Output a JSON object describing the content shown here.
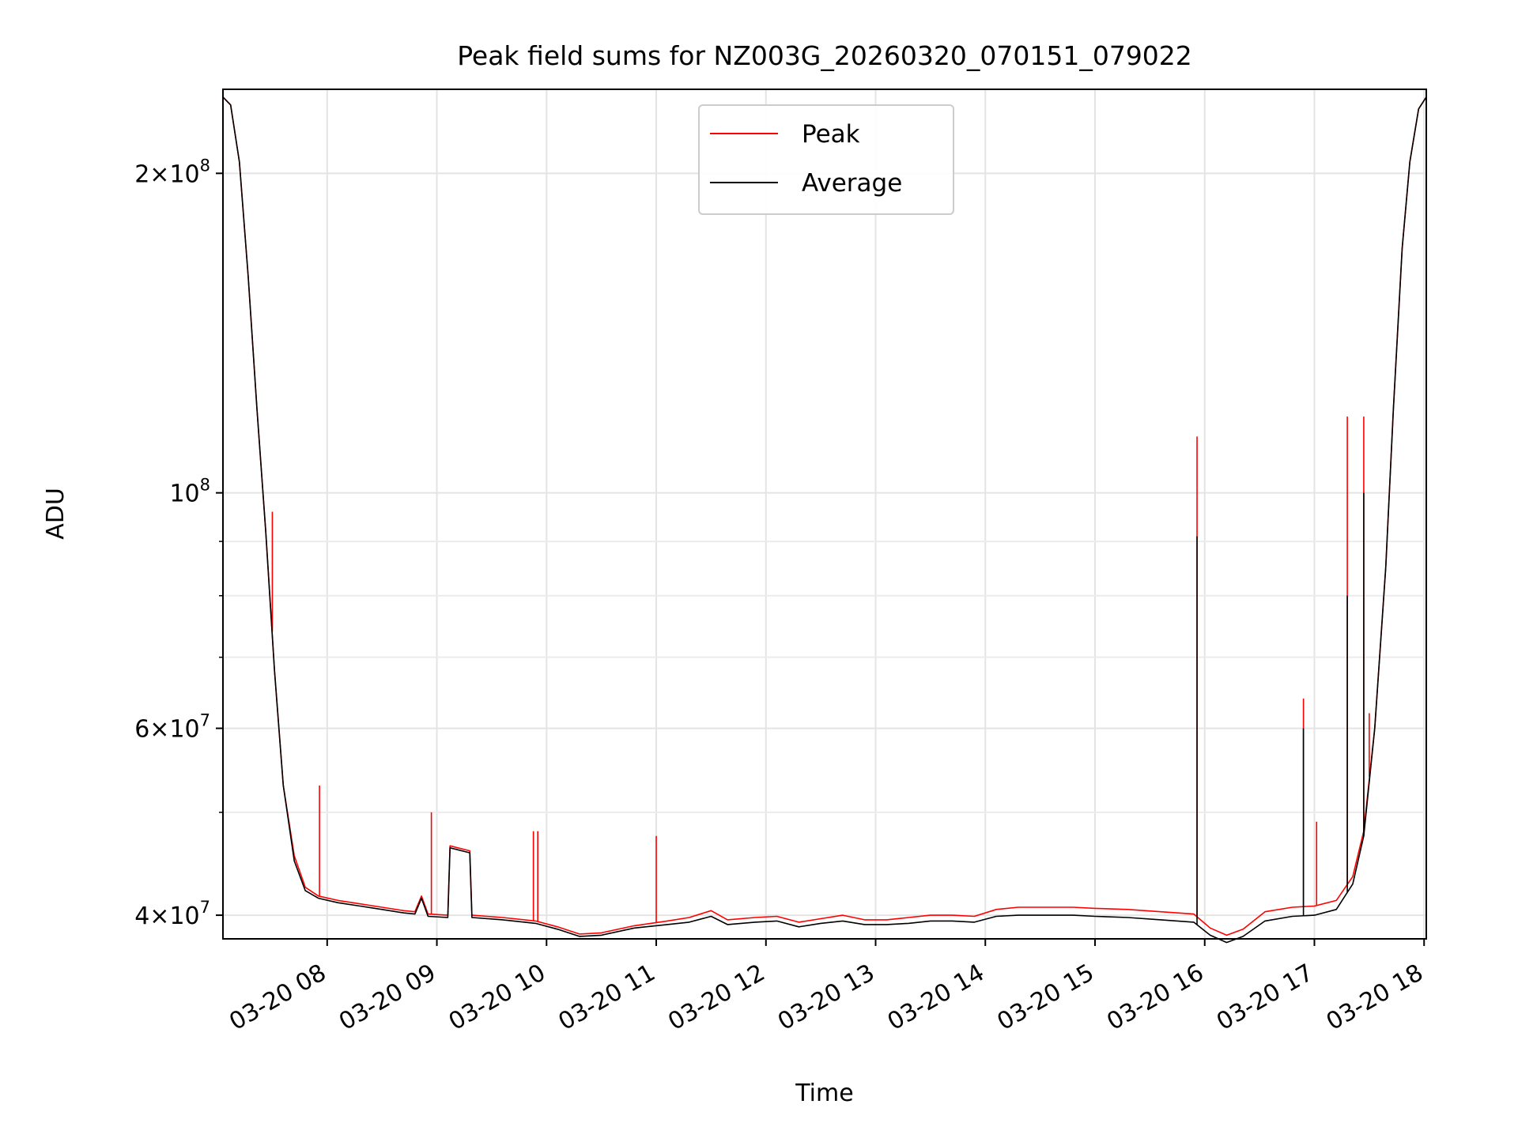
{
  "chart_data": {
    "type": "line",
    "title": "Peak field sums for NZ003G_20260320_070151_079022",
    "xlabel": "Time",
    "ylabel": "ADU",
    "yscale": "log",
    "xlim": [
      7.05,
      18.02
    ],
    "ylim": [
      38000000,
      240000000
    ],
    "grid": true,
    "legend": {
      "location": "upper center",
      "entries": [
        "Peak",
        "Average"
      ]
    },
    "x_ticks": [
      {
        "value": 8,
        "label": "03-20 08"
      },
      {
        "value": 9,
        "label": "03-20 09"
      },
      {
        "value": 10,
        "label": "03-20 10"
      },
      {
        "value": 11,
        "label": "03-20 11"
      },
      {
        "value": 12,
        "label": "03-20 12"
      },
      {
        "value": 13,
        "label": "03-20 13"
      },
      {
        "value": 14,
        "label": "03-20 14"
      },
      {
        "value": 15,
        "label": "03-20 15"
      },
      {
        "value": 16,
        "label": "03-20 16"
      },
      {
        "value": 17,
        "label": "03-20 17"
      },
      {
        "value": 18,
        "label": "03-20 18"
      }
    ],
    "y_major_ticks": [
      {
        "value": 40000000,
        "mantissa": "4",
        "exp": "7"
      },
      {
        "value": 60000000,
        "mantissa": "6",
        "exp": "7"
      },
      {
        "value": 100000000,
        "mantissa": "",
        "exp": "8"
      },
      {
        "value": 200000000,
        "mantissa": "2",
        "exp": "8"
      }
    ],
    "y_minor_ticks": [
      50000000,
      70000000,
      80000000,
      90000000
    ],
    "series": [
      {
        "name": "Peak",
        "color": "#ff0000",
        "points": [
          [
            7.05,
            236000000
          ],
          [
            7.12,
            232000000
          ],
          [
            7.2,
            205000000
          ],
          [
            7.28,
            160000000
          ],
          [
            7.36,
            120000000
          ],
          [
            7.44,
            92000000
          ],
          [
            7.52,
            68000000
          ],
          [
            7.6,
            53000000
          ],
          [
            7.7,
            45500000
          ],
          [
            7.8,
            42500000
          ],
          [
            7.92,
            41700000
          ],
          [
            8.1,
            41300000
          ],
          [
            8.3,
            41000000
          ],
          [
            8.5,
            40700000
          ],
          [
            8.7,
            40400000
          ],
          [
            8.8,
            40300000
          ],
          [
            8.86,
            41700000
          ],
          [
            8.92,
            40100000
          ],
          [
            9.1,
            40000000
          ],
          [
            9.12,
            46500000
          ],
          [
            9.3,
            46000000
          ],
          [
            9.32,
            40000000
          ],
          [
            9.6,
            39800000
          ],
          [
            9.9,
            39500000
          ],
          [
            10.1,
            39000000
          ],
          [
            10.3,
            38400000
          ],
          [
            10.5,
            38500000
          ],
          [
            10.8,
            39100000
          ],
          [
            11.1,
            39500000
          ],
          [
            11.3,
            39800000
          ],
          [
            11.5,
            40400000
          ],
          [
            11.65,
            39600000
          ],
          [
            11.9,
            39800000
          ],
          [
            12.1,
            39900000
          ],
          [
            12.3,
            39400000
          ],
          [
            12.5,
            39700000
          ],
          [
            12.7,
            40000000
          ],
          [
            12.9,
            39600000
          ],
          [
            13.1,
            39600000
          ],
          [
            13.3,
            39800000
          ],
          [
            13.5,
            40000000
          ],
          [
            13.7,
            40000000
          ],
          [
            13.9,
            39900000
          ],
          [
            14.1,
            40500000
          ],
          [
            14.3,
            40700000
          ],
          [
            14.5,
            40700000
          ],
          [
            14.8,
            40700000
          ],
          [
            15.0,
            40600000
          ],
          [
            15.3,
            40500000
          ],
          [
            15.6,
            40300000
          ],
          [
            15.9,
            40100000
          ],
          [
            16.05,
            38900000
          ],
          [
            16.2,
            38300000
          ],
          [
            16.35,
            38800000
          ],
          [
            16.55,
            40300000
          ],
          [
            16.8,
            40700000
          ],
          [
            17.0,
            40800000
          ],
          [
            17.2,
            41300000
          ],
          [
            17.35,
            43500000
          ],
          [
            17.45,
            48000000
          ],
          [
            17.55,
            60000000
          ],
          [
            17.65,
            85000000
          ],
          [
            17.72,
            120000000
          ],
          [
            17.8,
            170000000
          ],
          [
            17.87,
            205000000
          ],
          [
            17.95,
            230000000
          ],
          [
            18.02,
            236000000
          ]
        ],
        "spikes": [
          [
            7.5,
            96000000
          ],
          [
            7.93,
            53000000
          ],
          [
            8.95,
            50000000
          ],
          [
            9.88,
            48000000
          ],
          [
            9.92,
            48000000
          ],
          [
            11.0,
            47500000
          ],
          [
            15.93,
            113000000
          ],
          [
            16.9,
            64000000
          ],
          [
            17.02,
            49000000
          ],
          [
            17.3,
            118000000
          ],
          [
            17.45,
            118000000
          ],
          [
            17.5,
            62000000
          ]
        ]
      },
      {
        "name": "Average",
        "color": "#000000",
        "points": [
          [
            7.05,
            236000000
          ],
          [
            7.12,
            232000000
          ],
          [
            7.2,
            205000000
          ],
          [
            7.28,
            160000000
          ],
          [
            7.36,
            120000000
          ],
          [
            7.44,
            92000000
          ],
          [
            7.52,
            68000000
          ],
          [
            7.6,
            53000000
          ],
          [
            7.7,
            45000000
          ],
          [
            7.8,
            42200000
          ],
          [
            7.92,
            41500000
          ],
          [
            8.1,
            41100000
          ],
          [
            8.3,
            40800000
          ],
          [
            8.5,
            40500000
          ],
          [
            8.7,
            40200000
          ],
          [
            8.8,
            40100000
          ],
          [
            8.86,
            41500000
          ],
          [
            8.92,
            39900000
          ],
          [
            9.1,
            39800000
          ],
          [
            9.12,
            46300000
          ],
          [
            9.3,
            45800000
          ],
          [
            9.32,
            39800000
          ],
          [
            9.6,
            39600000
          ],
          [
            9.9,
            39300000
          ],
          [
            10.1,
            38800000
          ],
          [
            10.3,
            38200000
          ],
          [
            10.5,
            38300000
          ],
          [
            10.8,
            38900000
          ],
          [
            11.1,
            39200000
          ],
          [
            11.3,
            39400000
          ],
          [
            11.5,
            39900000
          ],
          [
            11.65,
            39200000
          ],
          [
            11.9,
            39400000
          ],
          [
            12.1,
            39500000
          ],
          [
            12.3,
            39000000
          ],
          [
            12.5,
            39300000
          ],
          [
            12.7,
            39500000
          ],
          [
            12.9,
            39200000
          ],
          [
            13.1,
            39200000
          ],
          [
            13.3,
            39300000
          ],
          [
            13.5,
            39500000
          ],
          [
            13.7,
            39500000
          ],
          [
            13.9,
            39400000
          ],
          [
            14.1,
            39900000
          ],
          [
            14.3,
            40000000
          ],
          [
            14.5,
            40000000
          ],
          [
            14.8,
            40000000
          ],
          [
            15.0,
            39900000
          ],
          [
            15.3,
            39800000
          ],
          [
            15.6,
            39600000
          ],
          [
            15.9,
            39400000
          ],
          [
            16.05,
            38300000
          ],
          [
            16.2,
            37700000
          ],
          [
            16.35,
            38200000
          ],
          [
            16.55,
            39500000
          ],
          [
            16.8,
            39900000
          ],
          [
            17.0,
            40000000
          ],
          [
            17.2,
            40500000
          ],
          [
            17.35,
            42800000
          ],
          [
            17.45,
            47500000
          ],
          [
            17.55,
            60000000
          ],
          [
            17.65,
            85000000
          ],
          [
            17.72,
            120000000
          ],
          [
            17.8,
            170000000
          ],
          [
            17.87,
            205000000
          ],
          [
            17.95,
            230000000
          ],
          [
            18.02,
            236000000
          ]
        ],
        "spikes": [
          [
            15.93,
            91000000
          ],
          [
            16.9,
            60000000
          ],
          [
            17.3,
            80000000
          ],
          [
            17.45,
            100000000
          ]
        ]
      }
    ]
  }
}
